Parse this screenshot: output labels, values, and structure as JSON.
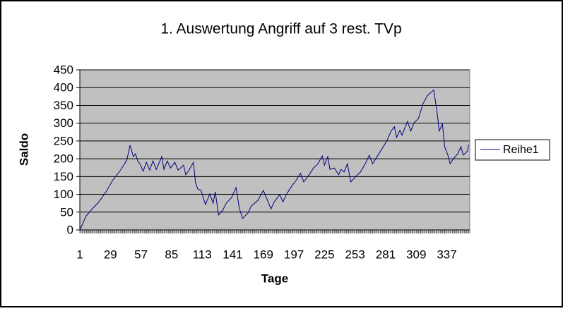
{
  "chart_data": {
    "type": "line",
    "title": "1. Auswertung  Angriff auf 3 rest. TVp",
    "x_label": "Tage",
    "y_label": "Saldo",
    "x": [
      1,
      7,
      12,
      18,
      25,
      31,
      38,
      44,
      47,
      50,
      52,
      54,
      56,
      59,
      62,
      65,
      68,
      71,
      76,
      78,
      81,
      84,
      88,
      91,
      96,
      98,
      101,
      105,
      107,
      109,
      112,
      116,
      120,
      123,
      125,
      128,
      132,
      135,
      140,
      144,
      147,
      150,
      155,
      158,
      164,
      169,
      172,
      176,
      179,
      184,
      187,
      190,
      195,
      199,
      203,
      206,
      210,
      215,
      219,
      223,
      225,
      228,
      230,
      234,
      238,
      240,
      243,
      246,
      249,
      254,
      258,
      263,
      266,
      269,
      274,
      278,
      282,
      286,
      289,
      291,
      294,
      296,
      299,
      301,
      304,
      307,
      311,
      315,
      319,
      322,
      325,
      328,
      330,
      333,
      335,
      338,
      340,
      343,
      347,
      350,
      352,
      356,
      357
    ],
    "series": [
      {
        "name": "Reihe1",
        "color": "#000080",
        "values": [
          0,
          40,
          58,
          77,
          107,
          139,
          167,
          196,
          238,
          206,
          214,
          194,
          186,
          165,
          190,
          168,
          194,
          170,
          206,
          170,
          194,
          174,
          190,
          168,
          182,
          155,
          168,
          190,
          131,
          115,
          111,
          71,
          101,
          75,
          107,
          42,
          56,
          75,
          91,
          119,
          61,
          32,
          48,
          67,
          83,
          111,
          89,
          59,
          79,
          99,
          79,
          99,
          123,
          139,
          159,
          135,
          151,
          174,
          186,
          208,
          182,
          206,
          170,
          174,
          155,
          170,
          163,
          186,
          135,
          151,
          163,
          190,
          210,
          186,
          210,
          230,
          250,
          278,
          290,
          260,
          280,
          266,
          290,
          305,
          278,
          301,
          313,
          353,
          377,
          385,
          393,
          333,
          278,
          298,
          234,
          210,
          186,
          200,
          214,
          234,
          210,
          222,
          240
        ]
      }
    ],
    "xlim": [
      1,
      358
    ],
    "xticks": [
      1,
      29,
      57,
      85,
      113,
      141,
      169,
      197,
      225,
      253,
      281,
      309,
      337
    ],
    "ylim": [
      0,
      450
    ],
    "yticks": [
      0,
      50,
      100,
      150,
      200,
      250,
      300,
      350,
      400,
      450
    ],
    "grid": true,
    "legend": "right",
    "plot_background": "#c0c0c0"
  }
}
